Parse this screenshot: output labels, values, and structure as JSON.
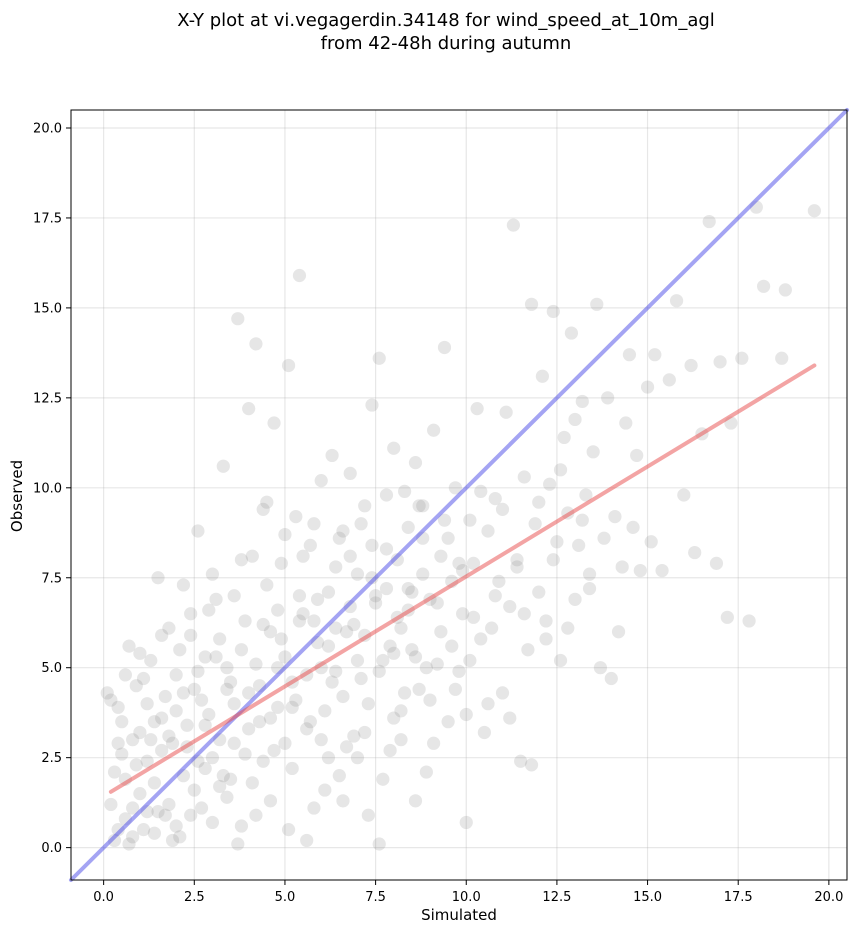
{
  "chart_data": {
    "type": "scatter",
    "title_lines": [
      "X-Y plot at vi.vegagerdin.34148 for wind_speed_at_10m_agl",
      "from 42-48h during autumn"
    ],
    "xlabel": "Simulated",
    "ylabel": "Observed",
    "xlim": [
      -0.9,
      20.5
    ],
    "ylim": [
      -0.9,
      20.5
    ],
    "xticks": [
      0.0,
      2.5,
      5.0,
      7.5,
      10.0,
      12.5,
      15.0,
      17.5,
      20.0
    ],
    "yticks": [
      0.0,
      2.5,
      5.0,
      7.5,
      10.0,
      12.5,
      15.0,
      17.5,
      20.0
    ],
    "xtick_labels": [
      "0.0",
      "2.5",
      "5.0",
      "7.5",
      "10.0",
      "12.5",
      "15.0",
      "17.5",
      "20.0"
    ],
    "ytick_labels": [
      "0.0",
      "2.5",
      "5.0",
      "7.5",
      "10.0",
      "12.5",
      "15.0",
      "17.5",
      "20.0"
    ],
    "grid": true,
    "point_color": "#808080",
    "point_opacity": 0.2,
    "identity_line": {
      "x": [
        -0.9,
        20.5
      ],
      "y": [
        -0.9,
        20.5
      ],
      "color": "#4a4ae8",
      "opacity": 0.5
    },
    "regression_line": {
      "x": [
        0.2,
        19.6
      ],
      "y": [
        1.55,
        13.4
      ],
      "color": "#e84a4a",
      "opacity": 0.5
    },
    "points": [
      [
        0.1,
        4.3
      ],
      [
        0.2,
        1.2
      ],
      [
        0.3,
        0.2
      ],
      [
        0.4,
        3.9
      ],
      [
        0.5,
        2.6
      ],
      [
        0.6,
        0.8
      ],
      [
        0.7,
        5.6
      ],
      [
        0.8,
        1.1
      ],
      [
        0.9,
        4.5
      ],
      [
        1.0,
        3.2
      ],
      [
        1.1,
        0.5
      ],
      [
        1.2,
        2.4
      ],
      [
        1.3,
        5.2
      ],
      [
        1.4,
        1.8
      ],
      [
        1.5,
        7.5
      ],
      [
        1.6,
        3.6
      ],
      [
        1.7,
        0.9
      ],
      [
        1.8,
        6.1
      ],
      [
        1.9,
        2.9
      ],
      [
        2.0,
        4.8
      ],
      [
        2.1,
        0.3
      ],
      [
        2.2,
        7.3
      ],
      [
        2.3,
        3.4
      ],
      [
        2.4,
        5.9
      ],
      [
        2.5,
        1.6
      ],
      [
        2.6,
        8.8
      ],
      [
        2.7,
        4.1
      ],
      [
        2.8,
        2.2
      ],
      [
        2.9,
        6.6
      ],
      [
        3.0,
        0.7
      ],
      [
        3.1,
        5.3
      ],
      [
        3.2,
        3.0
      ],
      [
        3.3,
        10.6
      ],
      [
        3.4,
        4.4
      ],
      [
        3.5,
        1.9
      ],
      [
        3.6,
        7.0
      ],
      [
        3.7,
        14.7
      ],
      [
        3.8,
        5.5
      ],
      [
        3.9,
        2.6
      ],
      [
        4.0,
        12.2
      ],
      [
        4.1,
        8.1
      ],
      [
        4.2,
        14.0
      ],
      [
        4.3,
        3.5
      ],
      [
        4.4,
        6.2
      ],
      [
        4.5,
        9.6
      ],
      [
        4.6,
        1.3
      ],
      [
        4.7,
        11.8
      ],
      [
        4.8,
        5.0
      ],
      [
        4.9,
        7.9
      ],
      [
        5.0,
        2.9
      ],
      [
        5.1,
        13.4
      ],
      [
        5.2,
        4.6
      ],
      [
        5.3,
        9.2
      ],
      [
        5.4,
        15.9
      ],
      [
        5.5,
        6.5
      ],
      [
        5.6,
        3.3
      ],
      [
        5.7,
        8.4
      ],
      [
        5.8,
        1.1
      ],
      [
        5.9,
        5.7
      ],
      [
        6.0,
        10.2
      ],
      [
        6.1,
        3.8
      ],
      [
        6.2,
        7.1
      ],
      [
        6.3,
        10.9
      ],
      [
        6.4,
        4.9
      ],
      [
        6.5,
        2.0
      ],
      [
        6.6,
        8.8
      ],
      [
        6.7,
        6.0
      ],
      [
        6.8,
        10.4
      ],
      [
        6.9,
        3.1
      ],
      [
        7.0,
        7.6
      ],
      [
        7.1,
        4.7
      ],
      [
        7.2,
        9.5
      ],
      [
        7.3,
        0.9
      ],
      [
        7.4,
        12.3
      ],
      [
        7.5,
        6.8
      ],
      [
        7.6,
        13.6
      ],
      [
        7.7,
        5.2
      ],
      [
        7.8,
        8.3
      ],
      [
        7.9,
        2.7
      ],
      [
        8.0,
        11.1
      ],
      [
        8.1,
        6.4
      ],
      [
        8.2,
        3.8
      ],
      [
        8.3,
        9.9
      ],
      [
        8.4,
        7.2
      ],
      [
        8.5,
        5.5
      ],
      [
        8.6,
        10.7
      ],
      [
        8.7,
        4.4
      ],
      [
        8.8,
        8.6
      ],
      [
        8.9,
        2.1
      ],
      [
        9.0,
        6.9
      ],
      [
        9.1,
        11.6
      ],
      [
        9.2,
        5.1
      ],
      [
        9.3,
        8.1
      ],
      [
        9.4,
        13.9
      ],
      [
        9.5,
        3.5
      ],
      [
        9.6,
        7.4
      ],
      [
        9.7,
        10.0
      ],
      [
        9.8,
        4.9
      ],
      [
        9.9,
        6.5
      ],
      [
        10.0,
        0.7
      ],
      [
        10.1,
        9.1
      ],
      [
        10.2,
        7.9
      ],
      [
        10.3,
        12.2
      ],
      [
        10.4,
        5.8
      ],
      [
        10.5,
        3.2
      ],
      [
        10.6,
        8.8
      ],
      [
        10.7,
        6.1
      ],
      [
        10.8,
        9.7
      ],
      [
        10.9,
        7.4
      ],
      [
        11.0,
        4.3
      ],
      [
        11.1,
        12.1
      ],
      [
        11.2,
        6.7
      ],
      [
        11.3,
        17.3
      ],
      [
        11.4,
        8.0
      ],
      [
        11.5,
        2.4
      ],
      [
        11.6,
        10.3
      ],
      [
        11.7,
        5.5
      ],
      [
        11.8,
        15.1
      ],
      [
        11.9,
        9.0
      ],
      [
        12.0,
        7.1
      ],
      [
        12.1,
        13.1
      ],
      [
        12.2,
        6.3
      ],
      [
        12.3,
        10.1
      ],
      [
        12.4,
        14.9
      ],
      [
        12.5,
        8.5
      ],
      [
        12.6,
        5.2
      ],
      [
        12.7,
        11.4
      ],
      [
        12.8,
        9.3
      ],
      [
        12.9,
        14.3
      ],
      [
        13.0,
        6.9
      ],
      [
        13.1,
        8.4
      ],
      [
        13.2,
        12.4
      ],
      [
        13.3,
        9.8
      ],
      [
        13.4,
        7.6
      ],
      [
        13.5,
        11.0
      ],
      [
        13.6,
        15.1
      ],
      [
        13.7,
        5.0
      ],
      [
        13.8,
        8.6
      ],
      [
        13.9,
        12.5
      ],
      [
        14.0,
        4.7
      ],
      [
        14.1,
        9.2
      ],
      [
        14.2,
        6.0
      ],
      [
        14.3,
        7.8
      ],
      [
        14.4,
        11.8
      ],
      [
        14.5,
        13.7
      ],
      [
        14.6,
        8.9
      ],
      [
        14.7,
        10.9
      ],
      [
        14.8,
        7.7
      ],
      [
        15.0,
        12.8
      ],
      [
        15.1,
        8.5
      ],
      [
        15.2,
        13.7
      ],
      [
        15.4,
        7.7
      ],
      [
        15.6,
        13.0
      ],
      [
        15.8,
        15.2
      ],
      [
        16.0,
        9.8
      ],
      [
        16.2,
        13.4
      ],
      [
        16.3,
        8.2
      ],
      [
        16.5,
        11.5
      ],
      [
        16.7,
        17.4
      ],
      [
        16.9,
        7.9
      ],
      [
        17.0,
        13.5
      ],
      [
        17.2,
        6.4
      ],
      [
        17.3,
        11.8
      ],
      [
        17.6,
        13.6
      ],
      [
        17.8,
        6.3
      ],
      [
        18.0,
        17.8
      ],
      [
        18.2,
        15.6
      ],
      [
        18.7,
        13.6
      ],
      [
        18.8,
        15.5
      ],
      [
        19.6,
        17.7
      ],
      [
        0.4,
        0.5
      ],
      [
        0.6,
        1.9
      ],
      [
        0.8,
        3.0
      ],
      [
        1.0,
        1.5
      ],
      [
        1.2,
        4.0
      ],
      [
        1.4,
        0.4
      ],
      [
        1.6,
        2.7
      ],
      [
        1.8,
        1.2
      ],
      [
        2.0,
        3.8
      ],
      [
        2.2,
        2.0
      ],
      [
        2.4,
        0.9
      ],
      [
        2.6,
        4.9
      ],
      [
        2.8,
        3.4
      ],
      [
        3.0,
        2.5
      ],
      [
        3.2,
        5.8
      ],
      [
        3.4,
        1.4
      ],
      [
        3.6,
        4.0
      ],
      [
        3.8,
        0.6
      ],
      [
        4.0,
        3.3
      ],
      [
        4.2,
        5.1
      ],
      [
        4.4,
        2.4
      ],
      [
        4.6,
        6.0
      ],
      [
        4.8,
        3.9
      ],
      [
        5.0,
        5.3
      ],
      [
        5.2,
        2.2
      ],
      [
        5.4,
        7.0
      ],
      [
        5.6,
        4.8
      ],
      [
        5.8,
        6.3
      ],
      [
        6.0,
        3.0
      ],
      [
        6.2,
        5.6
      ],
      [
        6.4,
        7.8
      ],
      [
        6.6,
        4.2
      ],
      [
        6.8,
        6.7
      ],
      [
        7.0,
        2.5
      ],
      [
        7.2,
        5.9
      ],
      [
        7.4,
        8.4
      ],
      [
        7.6,
        4.9
      ],
      [
        7.8,
        7.2
      ],
      [
        8.0,
        3.6
      ],
      [
        8.2,
        6.1
      ],
      [
        8.4,
        8.9
      ],
      [
        8.6,
        5.3
      ],
      [
        8.8,
        7.6
      ],
      [
        9.0,
        4.1
      ],
      [
        9.2,
        6.8
      ],
      [
        9.4,
        9.1
      ],
      [
        9.6,
        5.6
      ],
      [
        9.8,
        7.9
      ],
      [
        10.0,
        3.7
      ],
      [
        10.2,
        6.4
      ],
      [
        0.3,
        2.1
      ],
      [
        0.5,
        3.5
      ],
      [
        0.7,
        0.1
      ],
      [
        0.9,
        2.3
      ],
      [
        1.1,
        4.7
      ],
      [
        1.3,
        3.0
      ],
      [
        1.5,
        1.0
      ],
      [
        1.7,
        4.2
      ],
      [
        1.9,
        0.2
      ],
      [
        2.1,
        5.5
      ],
      [
        2.3,
        2.8
      ],
      [
        2.5,
        4.4
      ],
      [
        2.7,
        1.1
      ],
      [
        2.9,
        3.7
      ],
      [
        3.1,
        6.9
      ],
      [
        3.3,
        2.0
      ],
      [
        3.5,
        4.6
      ],
      [
        3.7,
        0.1
      ],
      [
        3.9,
        6.3
      ],
      [
        4.1,
        1.8
      ],
      [
        4.3,
        4.5
      ],
      [
        4.5,
        7.3
      ],
      [
        4.7,
        2.7
      ],
      [
        4.9,
        5.8
      ],
      [
        5.1,
        0.5
      ],
      [
        5.3,
        4.1
      ],
      [
        5.5,
        8.1
      ],
      [
        5.7,
        3.5
      ],
      [
        5.9,
        6.9
      ],
      [
        6.1,
        1.6
      ],
      [
        6.3,
        4.6
      ],
      [
        6.5,
        8.6
      ],
      [
        6.7,
        2.8
      ],
      [
        6.9,
        6.2
      ],
      [
        7.1,
        9.0
      ],
      [
        7.3,
        4.0
      ],
      [
        7.5,
        7.0
      ],
      [
        7.7,
        1.9
      ],
      [
        7.9,
        5.6
      ],
      [
        8.1,
        8.0
      ],
      [
        8.3,
        4.3
      ],
      [
        8.5,
        7.1
      ],
      [
        8.7,
        9.5
      ],
      [
        8.9,
        5.0
      ],
      [
        9.1,
        2.9
      ],
      [
        9.3,
        6.0
      ],
      [
        9.5,
        8.6
      ],
      [
        9.7,
        4.4
      ],
      [
        9.9,
        7.7
      ],
      [
        10.1,
        5.2
      ],
      [
        10.4,
        9.9
      ],
      [
        10.6,
        4.0
      ],
      [
        10.8,
        7.0
      ],
      [
        11.0,
        9.4
      ],
      [
        11.2,
        3.6
      ],
      [
        11.4,
        7.8
      ],
      [
        11.6,
        6.5
      ],
      [
        11.8,
        2.3
      ],
      [
        12.0,
        9.6
      ],
      [
        12.2,
        5.8
      ],
      [
        12.4,
        8.0
      ],
      [
        12.6,
        10.5
      ],
      [
        12.8,
        6.1
      ],
      [
        13.0,
        11.9
      ],
      [
        13.2,
        9.1
      ],
      [
        13.4,
        7.2
      ],
      [
        0.2,
        4.1
      ],
      [
        0.4,
        2.9
      ],
      [
        0.6,
        4.8
      ],
      [
        0.8,
        0.3
      ],
      [
        1.0,
        5.4
      ],
      [
        1.2,
        1.0
      ],
      [
        1.4,
        3.5
      ],
      [
        1.6,
        5.9
      ],
      [
        1.8,
        3.1
      ],
      [
        2.0,
        0.6
      ],
      [
        2.2,
        4.3
      ],
      [
        2.4,
        6.5
      ],
      [
        2.6,
        2.4
      ],
      [
        2.8,
        5.3
      ],
      [
        3.0,
        7.6
      ],
      [
        3.2,
        1.7
      ],
      [
        3.4,
        5.0
      ],
      [
        3.6,
        2.9
      ],
      [
        3.8,
        8.0
      ],
      [
        4.0,
        4.3
      ],
      [
        4.2,
        0.9
      ],
      [
        4.4,
        9.4
      ],
      [
        4.6,
        3.6
      ],
      [
        4.8,
        6.6
      ],
      [
        5.0,
        8.7
      ],
      [
        5.2,
        3.9
      ],
      [
        5.4,
        6.3
      ],
      [
        5.6,
        0.2
      ],
      [
        5.8,
        9.0
      ],
      [
        6.0,
        5.0
      ],
      [
        6.2,
        2.5
      ],
      [
        6.4,
        6.1
      ],
      [
        6.6,
        1.3
      ],
      [
        6.8,
        8.1
      ],
      [
        7.0,
        5.2
      ],
      [
        7.2,
        3.2
      ],
      [
        7.4,
        7.5
      ],
      [
        7.6,
        0.1
      ],
      [
        7.8,
        9.8
      ],
      [
        8.0,
        5.4
      ],
      [
        8.2,
        3.0
      ],
      [
        8.4,
        6.6
      ],
      [
        8.6,
        1.3
      ],
      [
        8.8,
        9.5
      ]
    ]
  }
}
